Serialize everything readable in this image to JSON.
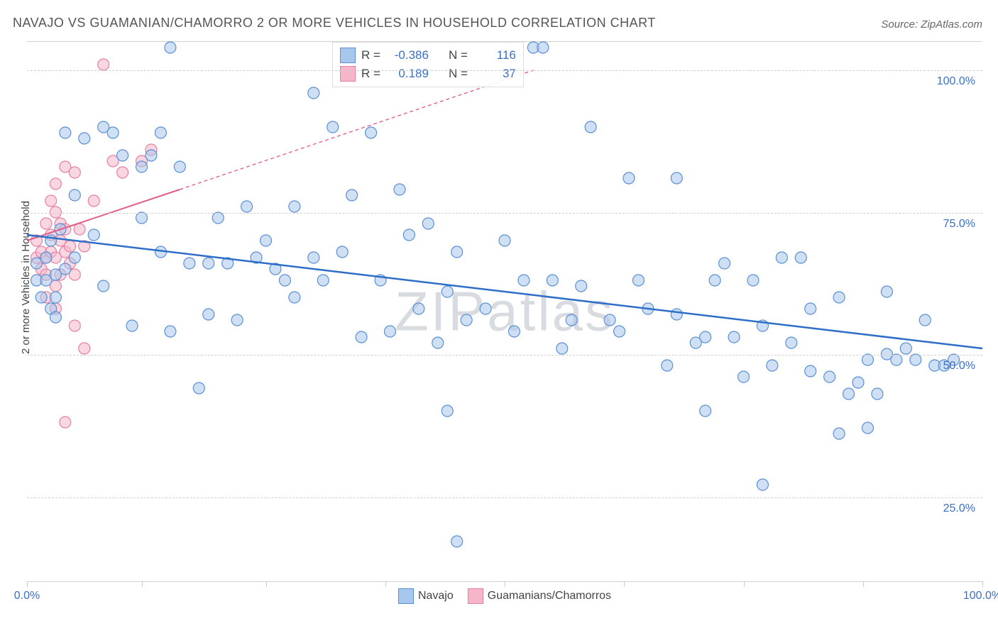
{
  "title": "NAVAJO VS GUAMANIAN/CHAMORRO 2 OR MORE VEHICLES IN HOUSEHOLD CORRELATION CHART",
  "source_label": "Source:",
  "source_value": "ZipAtlas.com",
  "watermark": "ZIPatlas",
  "chart": {
    "type": "scatter",
    "y_axis_label": "2 or more Vehicles in Household",
    "xlim": [
      0,
      100
    ],
    "ylim": [
      10,
      105
    ],
    "x_ticks": [
      0,
      12,
      25,
      37.5,
      50,
      62.5,
      75,
      87.5,
      100
    ],
    "x_tick_labels": {
      "0": "0.0%",
      "100": "100.0%"
    },
    "y_gridlines": [
      25,
      50,
      75,
      100
    ],
    "y_tick_labels": {
      "25": "25.0%",
      "50": "50.0%",
      "75": "75.0%",
      "100": "100.0%"
    },
    "background_color": "#ffffff",
    "grid_color": "#d0d0d0",
    "point_radius": 8,
    "point_stroke_width": 1.2,
    "axis_label_color": "#444444",
    "tick_label_color": "#3b6fc4",
    "title_fontsize": 18,
    "label_fontsize": 15,
    "tick_fontsize": 16,
    "series": [
      {
        "name": "Navajo",
        "legend_label": "Navajo",
        "fill_color": "#a8c7ec",
        "fill_opacity": 0.55,
        "stroke_color": "#5a8fd4",
        "stats": {
          "R": "-0.386",
          "N": "116"
        },
        "trend": {
          "x1": 0,
          "y1": 71,
          "x2": 100,
          "y2": 51,
          "color": "#2e6ec9",
          "width": 2.5,
          "extrapolate": false
        },
        "points": [
          [
            1,
            63
          ],
          [
            1,
            66
          ],
          [
            1.5,
            60
          ],
          [
            2,
            67
          ],
          [
            2,
            63
          ],
          [
            2.5,
            58
          ],
          [
            2.5,
            70
          ],
          [
            3,
            64
          ],
          [
            3,
            60
          ],
          [
            3,
            56.5
          ],
          [
            3.5,
            72
          ],
          [
            4,
            65
          ],
          [
            4,
            89
          ],
          [
            5,
            78
          ],
          [
            5,
            67
          ],
          [
            6,
            88
          ],
          [
            7,
            71
          ],
          [
            8,
            90
          ],
          [
            8,
            62
          ],
          [
            9,
            89
          ],
          [
            10,
            85
          ],
          [
            11,
            55
          ],
          [
            12,
            83
          ],
          [
            12,
            74
          ],
          [
            13,
            85
          ],
          [
            14,
            89
          ],
          [
            14,
            68
          ],
          [
            15,
            54
          ],
          [
            15,
            104
          ],
          [
            16,
            83
          ],
          [
            17,
            66
          ],
          [
            18,
            44
          ],
          [
            19,
            66
          ],
          [
            19,
            57
          ],
          [
            20,
            74
          ],
          [
            21,
            66
          ],
          [
            22,
            56
          ],
          [
            23,
            76
          ],
          [
            24,
            67
          ],
          [
            25,
            70
          ],
          [
            26,
            65
          ],
          [
            27,
            63
          ],
          [
            28,
            76
          ],
          [
            28,
            60
          ],
          [
            30,
            67
          ],
          [
            30,
            96
          ],
          [
            31,
            63
          ],
          [
            32,
            90
          ],
          [
            33,
            68
          ],
          [
            34,
            78
          ],
          [
            35,
            53
          ],
          [
            36,
            89
          ],
          [
            37,
            63
          ],
          [
            38,
            54
          ],
          [
            39,
            79
          ],
          [
            40,
            71
          ],
          [
            41,
            58
          ],
          [
            42,
            73
          ],
          [
            43,
            52
          ],
          [
            44,
            61
          ],
          [
            44,
            40
          ],
          [
            45,
            68
          ],
          [
            45,
            17
          ],
          [
            46,
            56
          ],
          [
            48,
            58
          ],
          [
            50,
            70
          ],
          [
            51,
            54
          ],
          [
            52,
            63
          ],
          [
            53,
            104
          ],
          [
            54,
            104
          ],
          [
            55,
            63
          ],
          [
            56,
            51
          ],
          [
            57,
            56
          ],
          [
            58,
            62
          ],
          [
            59,
            90
          ],
          [
            61,
            56
          ],
          [
            62,
            54
          ],
          [
            63,
            81
          ],
          [
            64,
            63
          ],
          [
            65,
            58
          ],
          [
            67,
            48
          ],
          [
            68,
            57
          ],
          [
            68,
            81
          ],
          [
            70,
            52
          ],
          [
            71,
            53
          ],
          [
            71,
            40
          ],
          [
            72,
            63
          ],
          [
            73,
            66
          ],
          [
            74,
            53
          ],
          [
            75,
            46
          ],
          [
            76,
            63
          ],
          [
            77,
            55
          ],
          [
            77,
            27
          ],
          [
            78,
            48
          ],
          [
            79,
            67
          ],
          [
            80,
            52
          ],
          [
            81,
            67
          ],
          [
            82,
            47
          ],
          [
            82,
            58
          ],
          [
            84,
            46
          ],
          [
            85,
            36
          ],
          [
            85,
            60
          ],
          [
            86,
            43
          ],
          [
            87,
            45
          ],
          [
            88,
            49
          ],
          [
            88,
            37
          ],
          [
            89,
            43
          ],
          [
            90,
            50
          ],
          [
            90,
            61
          ],
          [
            91,
            49
          ],
          [
            92,
            51
          ],
          [
            93,
            49
          ],
          [
            94,
            56
          ],
          [
            95,
            48
          ],
          [
            96,
            48
          ],
          [
            97,
            49
          ]
        ]
      },
      {
        "name": "Guamanians/Chamorros",
        "legend_label": "Guamanians/Chamorros",
        "fill_color": "#f4b6c8",
        "fill_opacity": 0.55,
        "stroke_color": "#e87fa3",
        "stats": {
          "R": "0.189",
          "N": "37"
        },
        "trend": {
          "x1": 0,
          "y1": 70,
          "x2": 16,
          "y2": 79,
          "extrapolate_x2": 53,
          "extrapolate_y2": 100,
          "color": "#e15d89",
          "width": 2,
          "dash": "5,4"
        },
        "points": [
          [
            1,
            67
          ],
          [
            1,
            70
          ],
          [
            1.5,
            68
          ],
          [
            1.5,
            65
          ],
          [
            2,
            73
          ],
          [
            2,
            67
          ],
          [
            2,
            60
          ],
          [
            2,
            64
          ],
          [
            2.5,
            71
          ],
          [
            2.5,
            68
          ],
          [
            2.5,
            77
          ],
          [
            3,
            80
          ],
          [
            3,
            75
          ],
          [
            3,
            67
          ],
          [
            3,
            62
          ],
          [
            3,
            58
          ],
          [
            3.5,
            70
          ],
          [
            3.5,
            73
          ],
          [
            3.5,
            64
          ],
          [
            4,
            72
          ],
          [
            4,
            68
          ],
          [
            4,
            83
          ],
          [
            4.5,
            66
          ],
          [
            4.5,
            69
          ],
          [
            5,
            64
          ],
          [
            5,
            82
          ],
          [
            5,
            55
          ],
          [
            5.5,
            72
          ],
          [
            6,
            69
          ],
          [
            6,
            51
          ],
          [
            7,
            77
          ],
          [
            8,
            101
          ],
          [
            9,
            84
          ],
          [
            10,
            82
          ],
          [
            12,
            84
          ],
          [
            13,
            86
          ],
          [
            4,
            38
          ]
        ]
      }
    ]
  },
  "stats_legend": {
    "labels": {
      "R": "R =",
      "N": "N ="
    }
  }
}
